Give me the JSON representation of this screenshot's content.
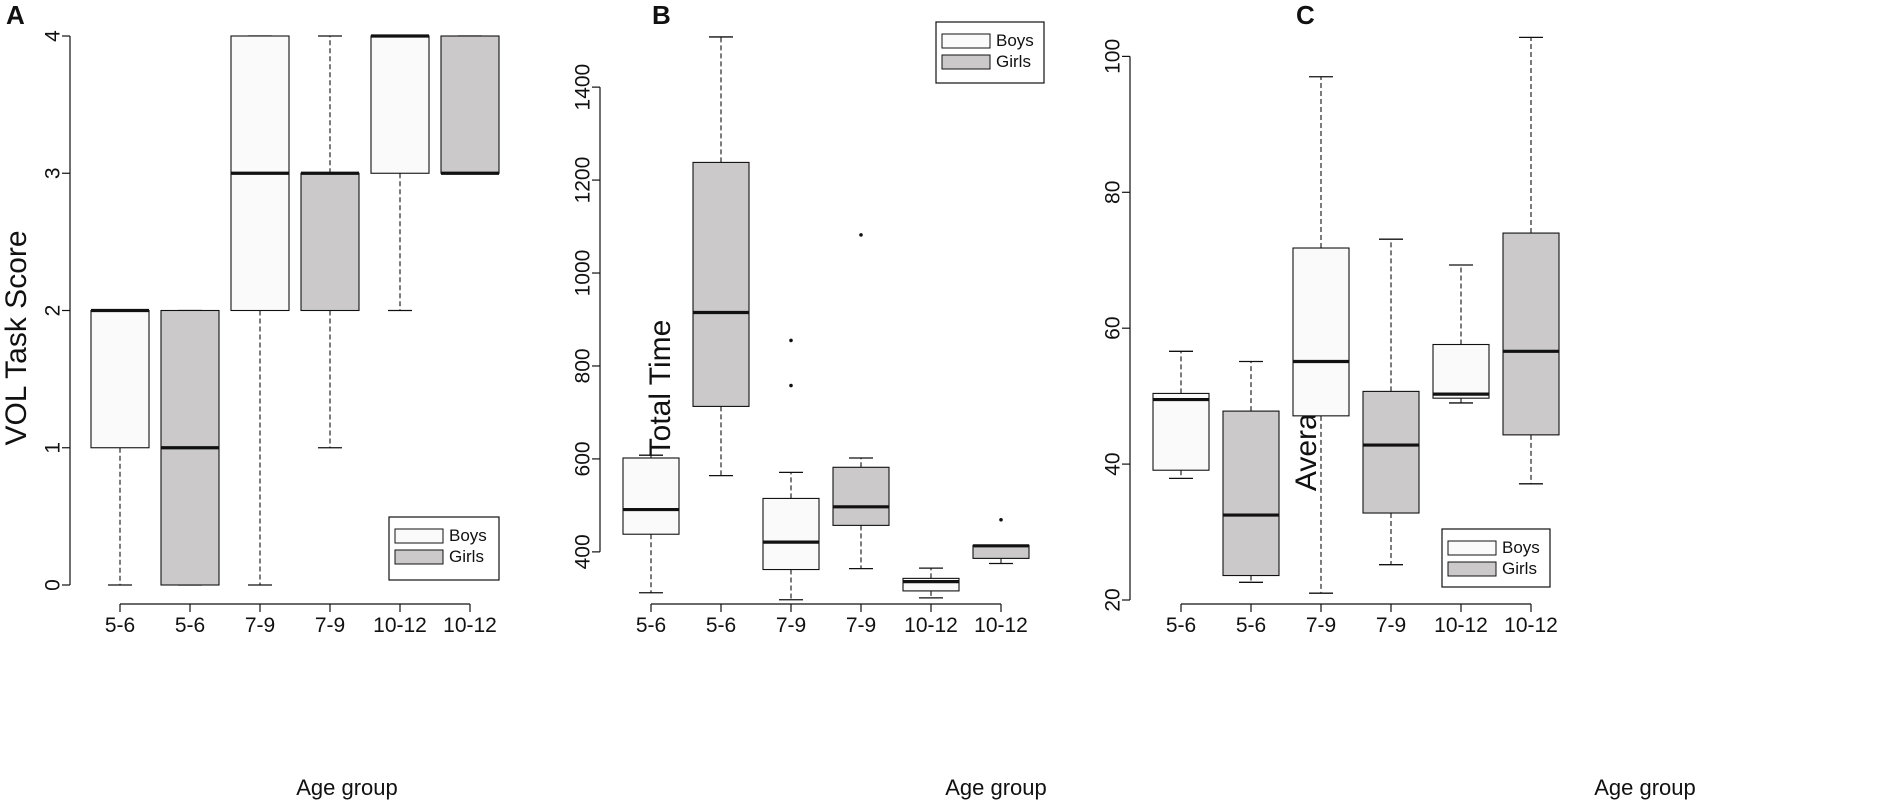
{
  "chart_data": [
    {
      "type": "box",
      "panel_letter": "A",
      "ylabel": "VOL Task Score",
      "xlabel": "Age group",
      "ylim": [
        0,
        4
      ],
      "yticks": [
        0,
        1,
        2,
        3,
        4
      ],
      "categories": [
        "5-6",
        "5-6",
        "7-9",
        "7-9",
        "10-12",
        "10-12"
      ],
      "group": [
        "Boys",
        "Girls",
        "Boys",
        "Girls",
        "Boys",
        "Girls"
      ],
      "boxes": [
        {
          "min": 0,
          "q1": 1,
          "median": 2,
          "q3": 2,
          "max": 2,
          "outliers": []
        },
        {
          "min": 0,
          "q1": 0,
          "median": 1,
          "q3": 2,
          "max": 2,
          "outliers": []
        },
        {
          "min": 0,
          "q1": 2,
          "median": 3,
          "q3": 4,
          "max": 4,
          "outliers": []
        },
        {
          "min": 1,
          "q1": 2,
          "median": 3,
          "q3": 3,
          "max": 4,
          "outliers": []
        },
        {
          "min": 2,
          "q1": 3,
          "median": 4,
          "q3": 4,
          "max": 4,
          "outliers": []
        },
        {
          "min": 3,
          "q1": 3,
          "median": 3,
          "q3": 4,
          "max": 4,
          "outliers": []
        }
      ],
      "legend": {
        "position": "bottom-right",
        "entries": [
          "Boys",
          "Girls"
        ]
      }
    },
    {
      "type": "box",
      "panel_letter": "B",
      "ylabel": "Total Time",
      "xlabel": "Age group",
      "ylim": [
        290,
        1510
      ],
      "yticks": [
        400,
        600,
        800,
        1000,
        1200,
        1400
      ],
      "categories": [
        "5-6",
        "5-6",
        "7-9",
        "7-9",
        "10-12",
        "10-12"
      ],
      "group": [
        "Boys",
        "Girls",
        "Boys",
        "Girls",
        "Boys",
        "Girls"
      ],
      "boxes": [
        {
          "min": 312,
          "q1": 438,
          "median": 491,
          "q3": 602,
          "max": 608,
          "outliers": []
        },
        {
          "min": 564,
          "q1": 713,
          "median": 915,
          "q3": 1238,
          "max": 1508,
          "outliers": []
        },
        {
          "min": 297,
          "q1": 362,
          "median": 421,
          "q3": 515,
          "max": 571,
          "outliers": [
            758,
            855
          ]
        },
        {
          "min": 364,
          "q1": 457,
          "median": 497,
          "q3": 582,
          "max": 602,
          "outliers": [
            1082
          ]
        },
        {
          "min": 301,
          "q1": 316,
          "median": 336,
          "q3": 343,
          "max": 365,
          "outliers": []
        },
        {
          "min": 375,
          "q1": 386,
          "median": 413,
          "q3": 414,
          "max": 414,
          "outliers": [
            469
          ]
        }
      ],
      "legend": {
        "position": "top-right",
        "entries": [
          "Boys",
          "Girls"
        ]
      }
    },
    {
      "type": "box",
      "panel_letter": "C",
      "ylabel": "Average Speed",
      "xlabel": "Age group",
      "ylim": [
        20,
        103
      ],
      "yticks": [
        20,
        40,
        60,
        80,
        100
      ],
      "categories": [
        "5-6",
        "5-6",
        "7-9",
        "7-9",
        "10-12",
        "10-12"
      ],
      "group": [
        "Boys",
        "Girls",
        "Boys",
        "Girls",
        "Boys",
        "Girls"
      ],
      "boxes": [
        {
          "min": 37.9,
          "q1": 39.1,
          "median": 49.5,
          "q3": 50.4,
          "max": 56.6,
          "outliers": []
        },
        {
          "min": 22.6,
          "q1": 23.6,
          "median": 32.5,
          "q3": 47.8,
          "max": 55.1,
          "outliers": []
        },
        {
          "min": 21,
          "q1": 47.1,
          "median": 55.1,
          "q3": 71.8,
          "max": 97,
          "outliers": []
        },
        {
          "min": 25.2,
          "q1": 32.8,
          "median": 42.8,
          "q3": 50.7,
          "max": 73.1,
          "outliers": []
        },
        {
          "min": 49,
          "q1": 49.7,
          "median": 50.3,
          "q3": 57.6,
          "max": 69.3,
          "outliers": []
        },
        {
          "min": 37.1,
          "q1": 44.3,
          "median": 56.6,
          "q3": 74,
          "max": 102.8,
          "outliers": []
        }
      ],
      "legend": {
        "position": "bottom-right",
        "entries": [
          "Boys",
          "Girls"
        ]
      }
    }
  ],
  "colors": {
    "boys_fill": "#fafafa",
    "girls_fill": "#cbc9c9",
    "stroke": "#111111"
  }
}
